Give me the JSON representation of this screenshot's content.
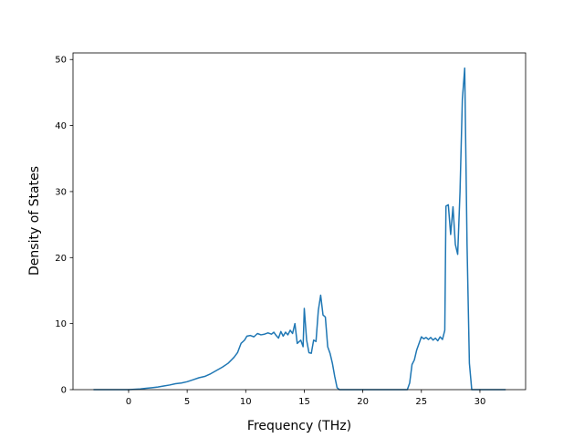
{
  "chart_data": {
    "type": "line",
    "title": "",
    "xlabel": "Frequency (THz)",
    "ylabel": "Density of States",
    "xlim": [
      -4.75,
      33.9
    ],
    "ylim": [
      0,
      51
    ],
    "xticks": [
      0,
      5,
      10,
      15,
      20,
      25,
      30
    ],
    "yticks": [
      0,
      10,
      20,
      30,
      40,
      50
    ],
    "grid": false,
    "legend": "none",
    "series": [
      {
        "color": "#1f77b4",
        "x": [
          -3.0,
          -2.0,
          -1.0,
          0.0,
          0.5,
          1.0,
          1.5,
          2.0,
          2.5,
          3.0,
          3.5,
          4.0,
          4.5,
          5.0,
          5.5,
          6.0,
          6.5,
          7.0,
          7.5,
          8.0,
          8.5,
          9.0,
          9.3,
          9.6,
          9.9,
          10.1,
          10.4,
          10.7,
          11.0,
          11.3,
          11.6,
          11.9,
          12.2,
          12.4,
          12.6,
          12.8,
          13.0,
          13.2,
          13.4,
          13.6,
          13.8,
          14.0,
          14.2,
          14.4,
          14.7,
          14.9,
          15.0,
          15.2,
          15.4,
          15.6,
          15.8,
          16.0,
          16.2,
          16.4,
          16.6,
          16.8,
          17.0,
          17.2,
          17.4,
          17.6,
          17.8,
          18.0,
          19.0,
          20.0,
          21.0,
          22.0,
          23.0,
          23.8,
          24.0,
          24.2,
          24.4,
          24.6,
          24.8,
          25.0,
          25.2,
          25.4,
          25.6,
          25.8,
          26.0,
          26.2,
          26.4,
          26.6,
          26.8,
          27.0,
          27.1,
          27.3,
          27.5,
          27.7,
          27.9,
          28.1,
          28.3,
          28.5,
          28.7,
          28.9,
          29.1,
          29.3,
          29.5,
          30.0,
          31.0,
          32.2
        ],
        "y": [
          0,
          0,
          0,
          0,
          0.05,
          0.1,
          0.2,
          0.3,
          0.4,
          0.55,
          0.7,
          0.9,
          1.0,
          1.2,
          1.5,
          1.8,
          2.0,
          2.4,
          2.9,
          3.4,
          4.0,
          4.9,
          5.6,
          7.0,
          7.5,
          8.1,
          8.2,
          8.0,
          8.5,
          8.3,
          8.4,
          8.6,
          8.4,
          8.7,
          8.2,
          7.8,
          8.8,
          8.1,
          8.7,
          8.3,
          9.0,
          8.5,
          10.0,
          7.0,
          7.5,
          6.5,
          12.3,
          7.5,
          5.6,
          5.5,
          7.5,
          7.3,
          12.0,
          14.3,
          11.3,
          11.0,
          6.5,
          5.5,
          4.0,
          2.0,
          0.3,
          0,
          0,
          0,
          0,
          0,
          0,
          0,
          1.0,
          3.8,
          4.5,
          6.0,
          7.0,
          8.0,
          7.7,
          7.9,
          7.6,
          7.9,
          7.5,
          7.8,
          7.4,
          8.0,
          7.6,
          9.0,
          27.8,
          28.0,
          23.5,
          27.7,
          22.0,
          20.5,
          30.0,
          44.0,
          48.7,
          22.0,
          4.0,
          0,
          0,
          0,
          0,
          0
        ]
      }
    ]
  }
}
